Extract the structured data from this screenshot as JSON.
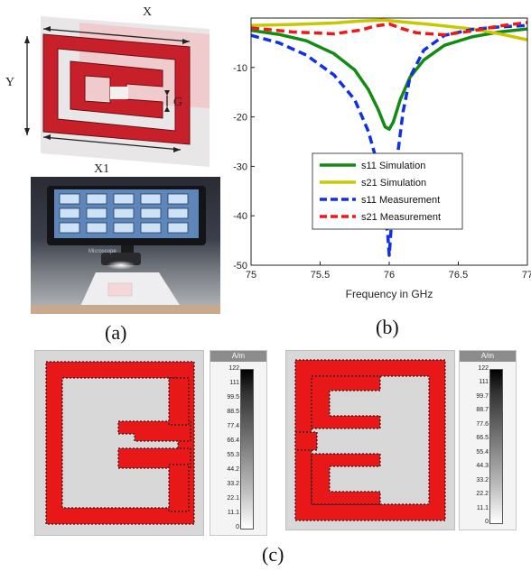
{
  "captions": {
    "a": "(a)",
    "b": "(b)",
    "c": "(c)"
  },
  "dimension_labels": {
    "x": "X",
    "y": "Y",
    "g": "G",
    "x1": "X1"
  },
  "microscope_text": "Microscope",
  "chart_data": {
    "type": "line",
    "xlabel": "Frequency in GHz",
    "ylabel": "",
    "xlim": [
      75,
      77
    ],
    "ylim": [
      -50,
      0
    ],
    "xticks": [
      "75",
      "75.5",
      "76",
      "76.5",
      "77"
    ],
    "yticks": [
      "-10",
      "-20",
      "-30",
      "-40",
      "-50"
    ],
    "legend_position": "center-bottom",
    "series": [
      {
        "name": "s11 Simulation",
        "color": "#138a13",
        "dash": "solid",
        "x": [
          75,
          75.2,
          75.4,
          75.6,
          75.75,
          75.85,
          75.92,
          75.97,
          76,
          76.03,
          76.08,
          76.15,
          76.25,
          76.4,
          76.6,
          76.8,
          77
        ],
        "y": [
          -2.5,
          -3.3,
          -4.6,
          -7.2,
          -10.5,
          -14.5,
          -18.5,
          -22,
          -22.5,
          -21,
          -16.5,
          -12,
          -8.5,
          -5.5,
          -3.8,
          -2.8,
          -2.2
        ]
      },
      {
        "name": "s21 Simulation",
        "color": "#c8c800",
        "dash": "solid",
        "x": [
          75,
          75.3,
          75.6,
          75.8,
          75.95,
          76,
          76.1,
          76.3,
          76.6,
          76.8,
          77
        ],
        "y": [
          -1.5,
          -1.3,
          -1.0,
          -0.6,
          -0.4,
          -0.5,
          -0.8,
          -1.3,
          -2.2,
          -3.2,
          -4.4
        ]
      },
      {
        "name": "s11 Measurement",
        "color": "#1030e8",
        "dash": "dashed",
        "x": [
          75,
          75.2,
          75.4,
          75.6,
          75.75,
          75.85,
          75.92,
          75.96,
          75.99,
          76,
          76.02,
          76.05,
          76.1,
          76.15,
          76.25,
          76.4,
          76.6,
          76.8,
          77
        ],
        "y": [
          -3.5,
          -5,
          -7.5,
          -11.5,
          -16.5,
          -23,
          -30,
          -37,
          -44,
          -48,
          -40,
          -30,
          -19,
          -12,
          -6.5,
          -3.5,
          -2.3,
          -1.8,
          -1.5
        ]
      },
      {
        "name": "s21 Measurement",
        "color": "#ee1818",
        "dash": "dashed",
        "x": [
          75,
          75.3,
          75.6,
          75.8,
          75.9,
          76,
          76.1,
          76.2,
          76.4,
          76.6,
          76.8,
          77
        ],
        "y": [
          -2.0,
          -2.8,
          -3.2,
          -2.4,
          -1.6,
          -1.2,
          -2.2,
          -3.0,
          -3.4,
          -2.6,
          -1.6,
          -0.9
        ]
      }
    ]
  },
  "field_maps": {
    "unit": "A/m",
    "left_ticks": [
      "122",
      "111",
      "99.5",
      "88.5",
      "77.4",
      "66.4",
      "55.3",
      "44.2",
      "33.2",
      "22.1",
      "11.1",
      "0"
    ],
    "right_ticks": [
      "122",
      "111",
      "99.7",
      "88.7",
      "77.6",
      "66.5",
      "55.4",
      "44.3",
      "33.2",
      "22.2",
      "11.1",
      "0"
    ]
  }
}
